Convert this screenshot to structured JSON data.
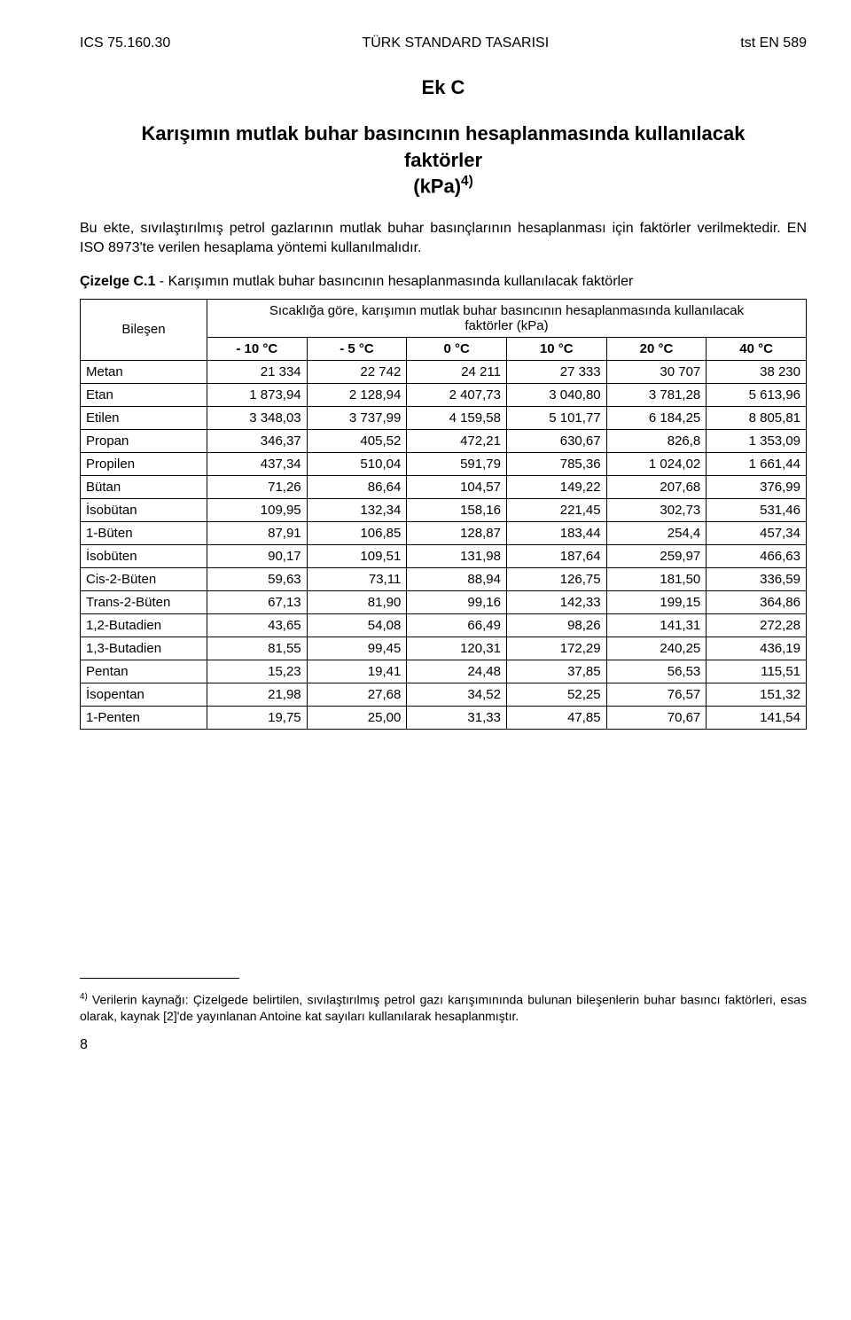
{
  "header": {
    "left": "ICS 75.160.30",
    "center": "TÜRK STANDARD TASARISI",
    "right": "tst EN 589"
  },
  "annex_label": "Ek C",
  "title_line1": "Karışımın mutlak buhar basıncının hesaplanmasında kullanılacak",
  "title_line2": "faktörler",
  "title_line3": "(kPa)",
  "title_supref": "4)",
  "paragraph": "Bu ekte, sıvılaştırılmış petrol gazlarının mutlak buhar basınçlarının hesaplanması için faktörler verilmektedir. EN ISO 8973'te verilen hesaplama yöntemi kullanılmalıdır.",
  "table_caption_bold": "Çizelge C.1",
  "table_caption_rest": " - Karışımın mutlak buhar basıncının hesaplanmasında kullanılacak faktörler",
  "col_bilesen": "Bileşen",
  "factor_header_line1": "Sıcaklığa göre, karışımın mutlak buhar basıncının hesaplanmasında kullanılacak",
  "factor_header_line2": "faktörler (kPa)",
  "temps": [
    "- 10 °C",
    "- 5 °C",
    "0 °C",
    "10 °C",
    "20 °C",
    "40 °C"
  ],
  "rows": [
    {
      "name": "Metan",
      "v": [
        "21 334",
        "22 742",
        "24 211",
        "27 333",
        "30 707",
        "38 230"
      ]
    },
    {
      "name": "Etan",
      "v": [
        "1 873,94",
        "2 128,94",
        "2 407,73",
        "3 040,80",
        "3 781,28",
        "5 613,96"
      ]
    },
    {
      "name": "Etilen",
      "v": [
        "3 348,03",
        "3 737,99",
        "4 159,58",
        "5 101,77",
        "6 184,25",
        "8 805,81"
      ]
    },
    {
      "name": "Propan",
      "v": [
        "346,37",
        "405,52",
        "472,21",
        "630,67",
        "826,8",
        "1 353,09"
      ]
    },
    {
      "name": "Propilen",
      "v": [
        "437,34",
        "510,04",
        "591,79",
        "785,36",
        "1 024,02",
        "1 661,44"
      ]
    },
    {
      "name": "Bütan",
      "v": [
        "71,26",
        "86,64",
        "104,57",
        "149,22",
        "207,68",
        "376,99"
      ]
    },
    {
      "name": "İsobütan",
      "v": [
        "109,95",
        "132,34",
        "158,16",
        "221,45",
        "302,73",
        "531,46"
      ]
    },
    {
      "name": "1-Büten",
      "v": [
        "87,91",
        "106,85",
        "128,87",
        "183,44",
        "254,4",
        "457,34"
      ]
    },
    {
      "name": "İsobüten",
      "v": [
        "90,17",
        "109,51",
        "131,98",
        "187,64",
        "259,97",
        "466,63"
      ]
    },
    {
      "name": "Cis-2-Büten",
      "v": [
        "59,63",
        "73,11",
        "88,94",
        "126,75",
        "181,50",
        "336,59"
      ]
    },
    {
      "name": "Trans-2-Büten",
      "v": [
        "67,13",
        "81,90",
        "99,16",
        "142,33",
        "199,15",
        "364,86"
      ]
    },
    {
      "name": "1,2-Butadien",
      "v": [
        "43,65",
        "54,08",
        "66,49",
        "98,26",
        "141,31",
        "272,28"
      ]
    },
    {
      "name": "1,3-Butadien",
      "v": [
        "81,55",
        "99,45",
        "120,31",
        "172,29",
        "240,25",
        "436,19"
      ]
    },
    {
      "name": "Pentan",
      "v": [
        "15,23",
        "19,41",
        "24,48",
        "37,85",
        "56,53",
        "115,51"
      ]
    },
    {
      "name": "İsopentan",
      "v": [
        "21,98",
        "27,68",
        "34,52",
        "52,25",
        "76,57",
        "151,32"
      ]
    },
    {
      "name": "1-Penten",
      "v": [
        "19,75",
        "25,00",
        "31,33",
        "47,85",
        "70,67",
        "141,54"
      ]
    }
  ],
  "footnote_ref": "4)",
  "footnote_text": " Verilerin kaynağı: Çizelgede belirtilen, sıvılaştırılmış petrol gazı karışımınında bulunan bileşenlerin buhar basıncı faktörleri, esas olarak, kaynak [2]'de yayınlanan Antoine kat sayıları kullanılarak hesaplanmıştır.",
  "page_number": "8"
}
